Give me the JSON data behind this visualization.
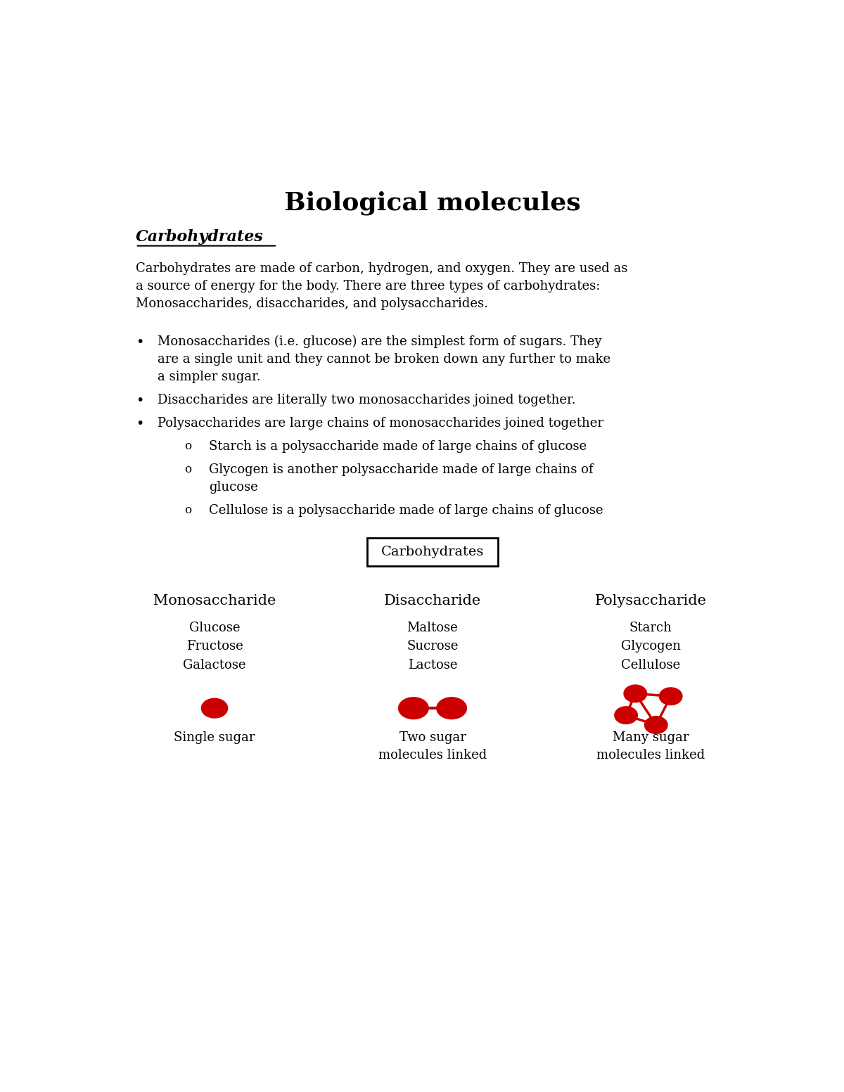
{
  "title": "Biological molecules",
  "section_heading": "Carbohydrates",
  "intro_text": "Carbohydrates are made of carbon, hydrogen, and oxygen. They are used as\na source of energy for the body. There are three types of carbohydrates:\nMonosaccharides, disaccharides, and polysaccharides.",
  "bullet1": "Monosaccharides (i.e. glucose) are the simplest form of sugars. They\nare a single unit and they cannot be broken down any further to make\na simpler sugar.",
  "bullet2": "Disaccharides are literally two monosaccharides joined together.",
  "bullet3": "Polysaccharides are large chains of monosaccharides joined together",
  "sub1": "Starch is a polysaccharide made of large chains of glucose",
  "sub2": "Glycogen is another polysaccharide made of large chains of\nglucose",
  "sub3": "Cellulose is a polysaccharide made of large chains of glucose",
  "diagram_box_label": "Carbohydrates",
  "col_headers": [
    "Monosaccharide",
    "Disaccharide",
    "Polysaccharide"
  ],
  "col_examples": [
    [
      "Glucose",
      "Fructose",
      "Galactose"
    ],
    [
      "Maltose",
      "Sucrose",
      "Lactose"
    ],
    [
      "Starch",
      "Glycogen",
      "Cellulose"
    ]
  ],
  "col_captions": [
    "Single sugar",
    "Two sugar\nmolecules linked",
    "Many sugar\nmolecules linked"
  ],
  "molecule_color": "#cc0000",
  "bg_color": "#ffffff",
  "text_color": "#000000"
}
